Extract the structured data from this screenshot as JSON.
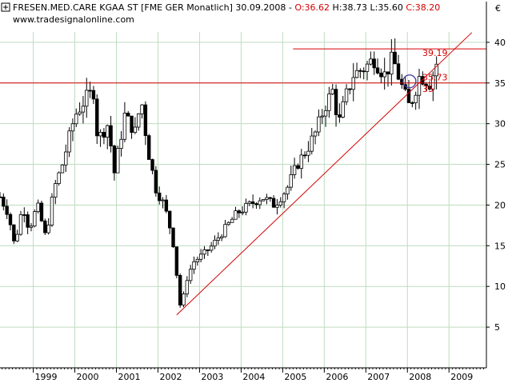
{
  "header": {
    "instrument": "FRESEN.MED.CARE KGAA ST [FME GER",
    "period": "Monatlich]",
    "date": "30.09.2008",
    "open": "O:36.62",
    "high": "H:38.73",
    "low": "L:35.60",
    "close": "C:38.20",
    "source": "www.tradesignalonline.com",
    "currency": "€"
  },
  "colors": {
    "background": "#ffffff",
    "grid": "#bfdcbf",
    "axis": "#000000",
    "candle": "#000000",
    "annotation": "#d40000",
    "marker": "#3a3a9a"
  },
  "chart_data": {
    "type": "candlestick",
    "x_unit": "year",
    "xlim": [
      1998.2,
      2009.9
    ],
    "ylim": [
      0,
      45
    ],
    "x_tick_labels": [
      "1999",
      "2000",
      "2001",
      "2002",
      "2003",
      "2004",
      "2005",
      "2006",
      "2007",
      "2008",
      "2009"
    ],
    "x_ticks": [
      1999,
      2000,
      2001,
      2002,
      2003,
      2004,
      2005,
      2006,
      2007,
      2008,
      2009
    ],
    "y_ticks": [
      5,
      10,
      15,
      20,
      25,
      30,
      35,
      40
    ],
    "grid": true,
    "monthly_closes_anchors": [
      [
        1998.2,
        21
      ],
      [
        1998.4,
        19
      ],
      [
        1998.55,
        15
      ],
      [
        1998.75,
        20
      ],
      [
        1998.9,
        17
      ],
      [
        1999.1,
        20
      ],
      [
        1999.3,
        16
      ],
      [
        1999.5,
        22
      ],
      [
        1999.7,
        25
      ],
      [
        2000.0,
        31
      ],
      [
        2000.25,
        33
      ],
      [
        2000.45,
        34
      ],
      [
        2000.55,
        28
      ],
      [
        2000.8,
        30
      ],
      [
        2000.95,
        24
      ],
      [
        2001.2,
        31
      ],
      [
        2001.45,
        29
      ],
      [
        2001.6,
        33
      ],
      [
        2001.75,
        27
      ],
      [
        2001.95,
        22
      ],
      [
        2002.15,
        20
      ],
      [
        2002.35,
        16
      ],
      [
        2002.55,
        7
      ],
      [
        2002.7,
        11
      ],
      [
        2002.85,
        13
      ],
      [
        2003.1,
        14
      ],
      [
        2003.3,
        15
      ],
      [
        2003.6,
        17
      ],
      [
        2003.9,
        19
      ],
      [
        2004.2,
        20
      ],
      [
        2004.5,
        21
      ],
      [
        2004.8,
        20
      ],
      [
        2005.1,
        22
      ],
      [
        2005.35,
        25
      ],
      [
        2005.6,
        27
      ],
      [
        2005.8,
        29
      ],
      [
        2006.0,
        32
      ],
      [
        2006.2,
        34
      ],
      [
        2006.35,
        30
      ],
      [
        2006.5,
        33
      ],
      [
        2006.7,
        36
      ],
      [
        2007.0,
        37
      ],
      [
        2007.2,
        38
      ],
      [
        2007.45,
        36
      ],
      [
        2007.65,
        38
      ],
      [
        2007.9,
        34
      ],
      [
        2008.05,
        32
      ],
      [
        2008.3,
        36
      ],
      [
        2008.55,
        35
      ],
      [
        2008.75,
        38.2
      ]
    ],
    "horizontal_lines": [
      {
        "value": 39.19,
        "label": "39.19",
        "x_start": 2005.25
      },
      {
        "value": 35.0,
        "label": "35",
        "x_start": 1998.2
      }
    ],
    "price_labels": [
      {
        "value": 35.73,
        "label": "35.73"
      }
    ],
    "trendline": {
      "from": [
        2002.45,
        6.5
      ],
      "to": [
        2009.55,
        41.2
      ]
    },
    "circle_marker": {
      "x": 2008.05,
      "y": 35.2
    }
  }
}
